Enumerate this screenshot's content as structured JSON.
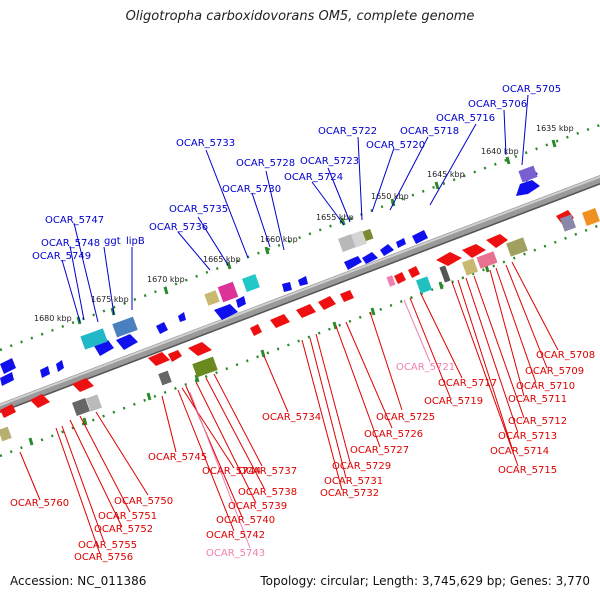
{
  "title": "Oligotropha carboxidovorans OM5, complete genome",
  "footer": {
    "accession": "Accession: NC_011386",
    "topology": "Topology: circular; Length: 3,745,629 bp; Genes: 3,770"
  },
  "colors": {
    "blue_label": "#0000cc",
    "red_label": "#dd0000",
    "pink_label": "#f080b0",
    "backbone": "#888888",
    "ticks": "#228822"
  },
  "kbp_labels": [
    "1635 kbp",
    "1640 kbp",
    "1645 kbp",
    "1650 kbp",
    "1655 kbp",
    "1660 kbp",
    "1665 kbp",
    "1670 kbp",
    "1675 kbp",
    "1680 kbp"
  ],
  "top_labels": [
    "OCAR_5705",
    "OCAR_5706",
    "OCAR_5716",
    "OCAR_5718",
    "OCAR_5722",
    "OCAR_5720",
    "OCAR_5723",
    "OCAR_5724",
    "OCAR_5728",
    "OCAR_5730",
    "OCAR_5733",
    "OCAR_5735",
    "OCAR_5736",
    "OCAR_5747",
    "OCAR_5748",
    "ggt",
    "lipB",
    "OCAR_5749"
  ],
  "bottom_labels": [
    "OCAR_5708",
    "OCAR_5709",
    "OCAR_5710",
    "OCAR_5711",
    "OCAR_5712",
    "OCAR_5713",
    "OCAR_5714",
    "OCAR_5715",
    "OCAR_5717",
    "OCAR_5719",
    "OCAR_5721",
    "OCAR_5725",
    "OCAR_5726",
    "OCAR_5727",
    "OCAR_5729",
    "OCAR_5731",
    "OCAR_5732",
    "OCAR_5734",
    "OCAR_5737",
    "OCAR_5738",
    "OCAR_5739",
    "OCAR_5740",
    "OCAR_5742",
    "OCAR_5743",
    "OCAR_5744",
    "OCAR_5745",
    "OCAR_5750",
    "OCAR_5751",
    "OCAR_5752",
    "OCAR_5755",
    "OCAR_5756",
    "OCAR_5760"
  ]
}
